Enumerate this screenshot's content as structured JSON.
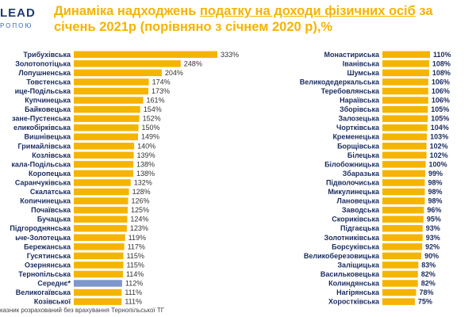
{
  "logo": {
    "main": "LEAD",
    "sub": "РОПОЮ"
  },
  "title": {
    "part1": "Динаміка надходжень ",
    "part2": "податку на доходи фізичних осіб",
    "part3": " за січень 2021р (порівняно з січнем 2020 р),%"
  },
  "footnote": "казник розрахований без врахування Тернопільської ТГ",
  "colors": {
    "bar": "#f5b400",
    "highlight": "#7e96cc",
    "label": "#1a2b5e",
    "title": "#f5b400"
  },
  "chart_data": [
    {
      "type": "bar",
      "orientation": "horizontal",
      "unit": "%",
      "highlight_category": "Середнє*",
      "categories": [
        "Трибухівська",
        "Золотопотіцька",
        "Лопушненська",
        "Товстенська",
        "ице-Подільська",
        "Купчинецька",
        "Байковецька",
        "зане-Пустенська",
        "еликобірківська",
        "Вишнівецька",
        "Гримайлівська",
        "Козлівська",
        "кала-Подільська",
        "Коропецька",
        "Саранчуківська",
        "Скалатська",
        "Копичинецька",
        "Почаївська",
        "Бучацька",
        "Підгороднянська",
        "ьче-Золотецька",
        "Бережанська",
        "Гусятинська",
        "Озернянська",
        "Тернопільська",
        "Середнє*",
        "Великогаївська",
        "Козівської"
      ],
      "values": [
        333,
        248,
        204,
        174,
        173,
        161,
        154,
        152,
        150,
        149,
        140,
        139,
        138,
        138,
        132,
        128,
        126,
        125,
        124,
        123,
        119,
        117,
        115,
        115,
        114,
        112,
        111,
        111
      ],
      "value_labels": [
        "333%",
        "248%",
        "204%",
        "174%",
        "173%",
        "161%",
        "154%",
        "152%",
        "150%",
        "149%",
        "140%",
        "139%",
        "138%",
        "138%",
        "132%",
        "128%",
        "126%",
        "125%",
        "124%",
        "123%",
        "119%",
        "117%",
        "115%",
        "115%",
        "114%",
        "112%",
        "111%",
        "111%"
      ],
      "xlim": [
        0,
        333
      ]
    },
    {
      "type": "bar",
      "orientation": "horizontal",
      "unit": "%",
      "categories": [
        "Монастириська",
        "Іванівська",
        "Шумська",
        "Великодедеркальська",
        "Теребовлянська",
        "Нараївська",
        "Зборівська",
        "Залозецька",
        "Чортківська",
        "Кременецька",
        "Борщівська",
        "Білецька",
        "Білобожницька",
        "Збаразька",
        "Підволочиська",
        "Микулинецька",
        "Лановецька",
        "Заводська",
        "Скориківська",
        "Підгаєцька",
        "Золотниківська",
        "Борсуківська",
        "Великоберезовицька",
        "Заліщицька",
        "Васильковецька",
        "Колиндянська",
        "Нагірянська",
        "Хоростківська"
      ],
      "values": [
        110,
        108,
        108,
        106,
        106,
        106,
        105,
        105,
        104,
        103,
        102,
        102,
        100,
        99,
        98,
        98,
        98,
        96,
        95,
        93,
        93,
        92,
        90,
        83,
        82,
        82,
        78,
        75
      ],
      "value_labels": [
        "110%",
        "108%",
        "108%",
        "106%",
        "106%",
        "106%",
        "105%",
        "105%",
        "104%",
        "103%",
        "102%",
        "102%",
        "100%",
        "99%",
        "98%",
        "98%",
        "98%",
        "96%",
        "95%",
        "93%",
        "93%",
        "92%",
        "90%",
        "83%",
        "82%",
        "82%",
        "78%",
        "75%"
      ],
      "xlim": [
        0,
        110
      ]
    }
  ]
}
